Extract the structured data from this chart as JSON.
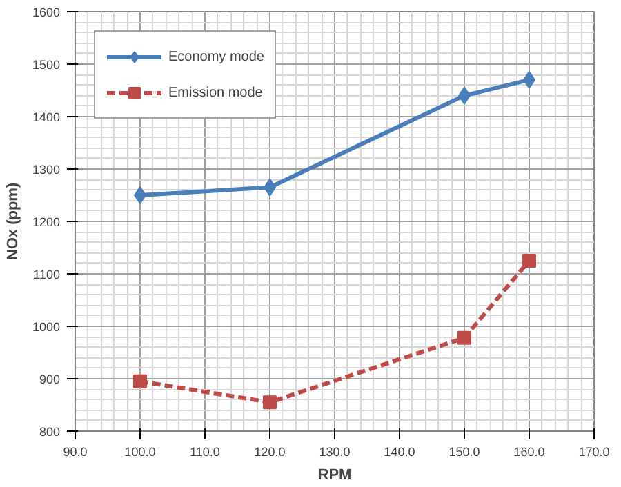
{
  "chart_data": {
    "type": "line",
    "xlabel": "RPM",
    "ylabel": "NOx (ppm)",
    "series": [
      {
        "name": "Economy mode",
        "color": "#4a7ebb",
        "marker": "diamond",
        "line_style": "solid",
        "x": [
          100,
          120,
          150,
          160
        ],
        "values": [
          1250,
          1265,
          1440,
          1470
        ]
      },
      {
        "name": "Emission mode",
        "color": "#be4b48",
        "marker": "square",
        "line_style": "dashed",
        "x": [
          100,
          120,
          150,
          160
        ],
        "values": [
          895,
          855,
          978,
          1125
        ]
      }
    ],
    "xlim": [
      90,
      170
    ],
    "xticks": [
      {
        "value": 90,
        "label": "90.0"
      },
      {
        "value": 100,
        "label": "100.0"
      },
      {
        "value": 110,
        "label": "110.0"
      },
      {
        "value": 120,
        "label": "120.0"
      },
      {
        "value": 130,
        "label": "130.0"
      },
      {
        "value": 140,
        "label": "140.0"
      },
      {
        "value": 150,
        "label": "150.0"
      },
      {
        "value": 160,
        "label": "160.0"
      },
      {
        "value": 170,
        "label": "170.0"
      }
    ],
    "ylim": [
      800,
      1600
    ],
    "yticks": [
      800,
      900,
      1000,
      1100,
      1200,
      1300,
      1400,
      1500,
      1600
    ],
    "grid": true,
    "legend": "top left"
  }
}
